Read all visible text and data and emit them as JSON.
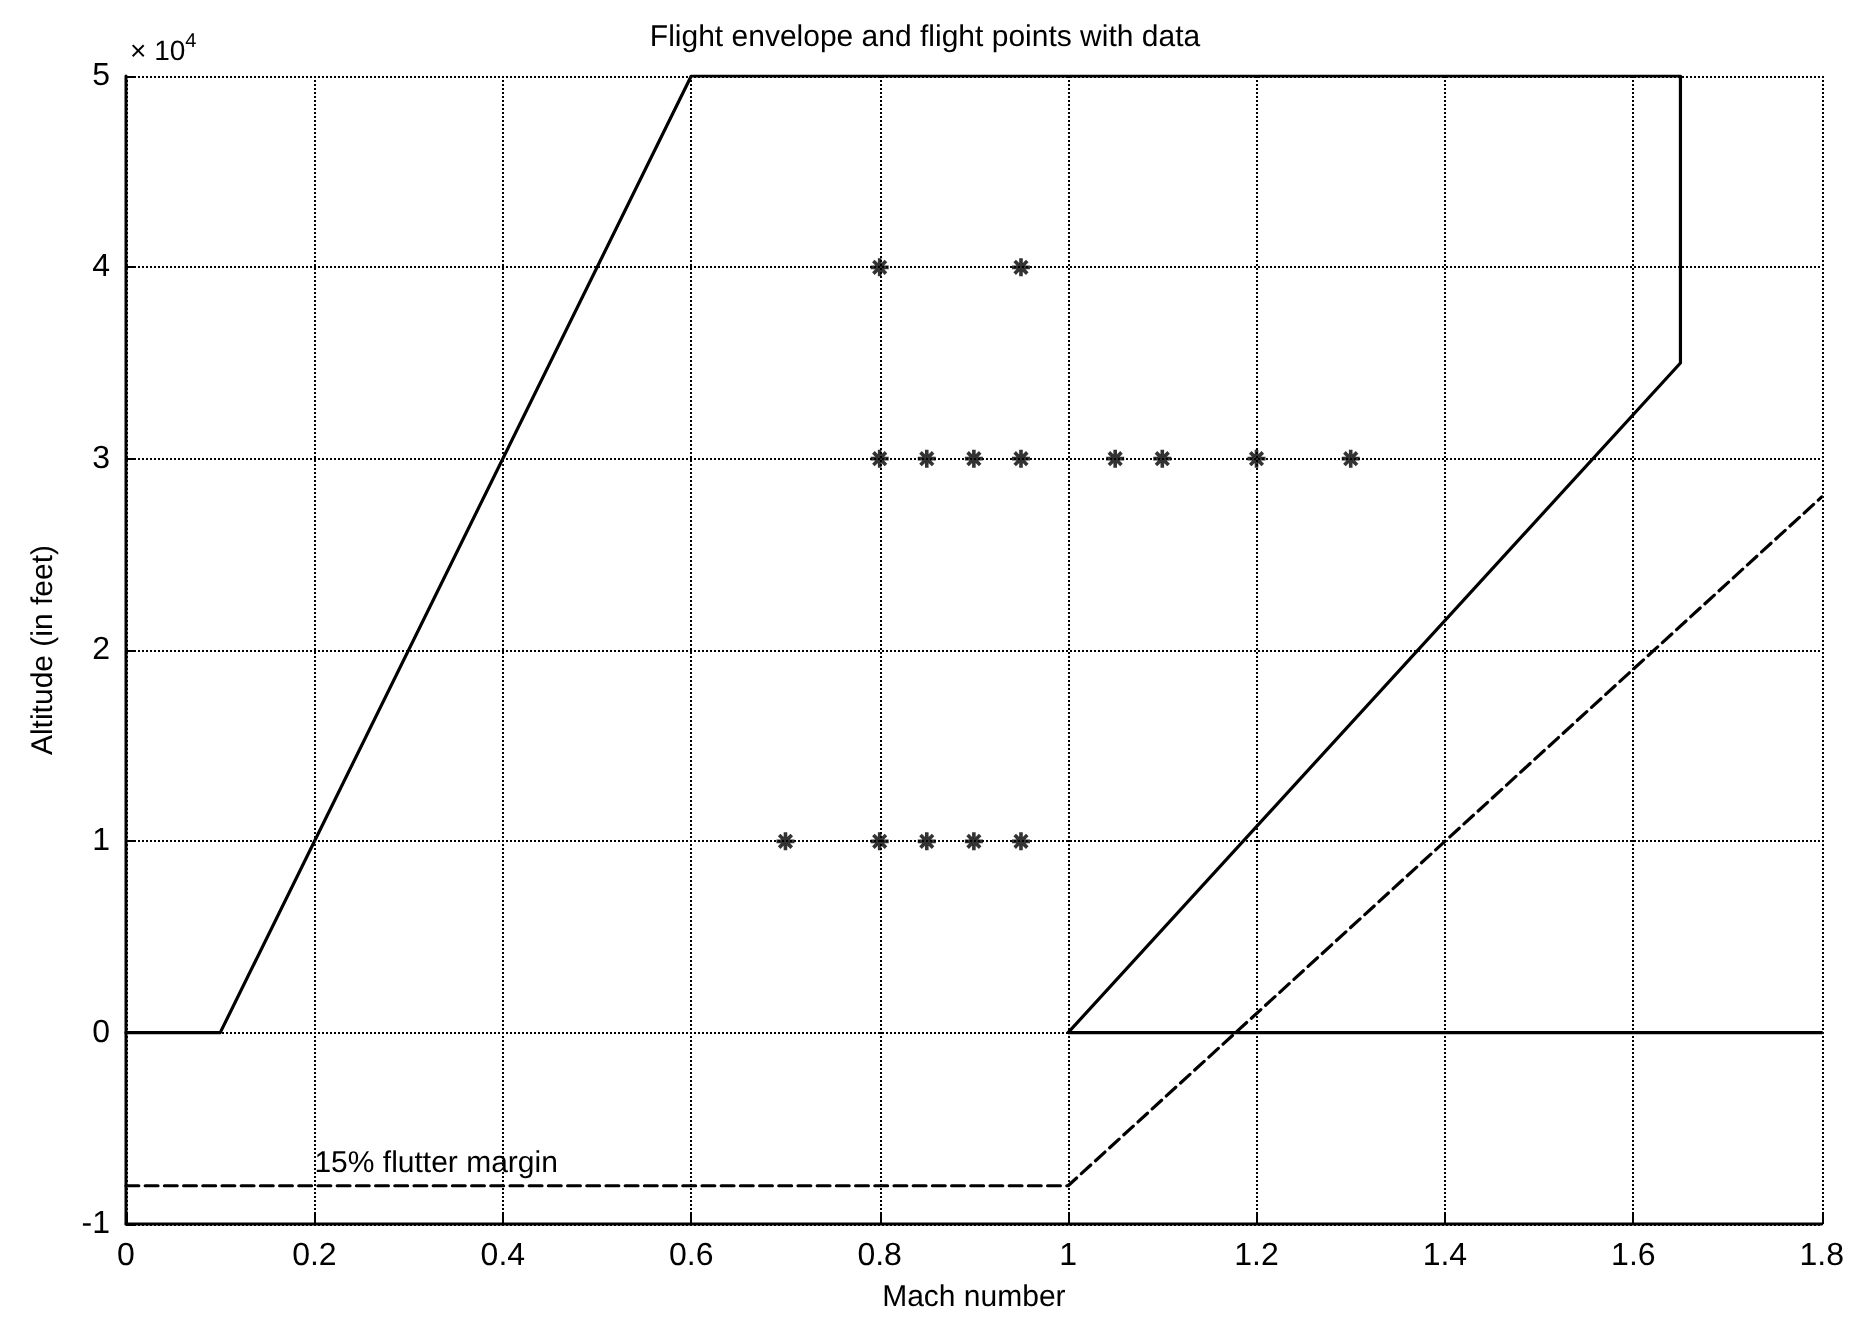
{
  "chart_data": {
    "type": "line",
    "title": "Flight envelope and flight points with data",
    "xlabel": "Mach number",
    "ylabel": "Altitude (in feet)",
    "xlim": [
      0,
      1.8
    ],
    "xticks": [
      0,
      0.2,
      0.4,
      0.6,
      0.8,
      1,
      1.2,
      1.4,
      1.6,
      1.8
    ],
    "ylim": [
      -1,
      5
    ],
    "yticks": [
      -1,
      0,
      1,
      2,
      3,
      4,
      5
    ],
    "grid": true,
    "annotations": [
      "× 10$^{4}$",
      {
        "text": "15% flutter margin",
        "x": 0.2,
        "y": -0.8
      }
    ],
    "series": [
      {
        "color": "#000000",
        "line_style": "solid",
        "marker": "none",
        "x": [
          0,
          0.1,
          0.6,
          1.65,
          1.65,
          1,
          1.8
        ],
        "values": [
          0,
          0,
          5,
          5,
          3.5,
          0,
          0
        ]
      },
      {
        "color": "#000000",
        "line_style": "dashed",
        "marker": "none",
        "x": [
          0,
          1,
          1.8
        ],
        "values": [
          -0.8,
          -0.8,
          2.8
        ]
      },
      {
        "type": "scatter",
        "color": "#000000",
        "marker": "cross",
        "x": [
          0.8,
          0.95,
          0.8,
          0.85,
          0.9,
          0.95,
          1.05,
          1.1,
          1.2,
          1.3,
          0.7,
          0.8,
          0.85,
          0.9,
          0.95
        ],
        "values": [
          4,
          4,
          3,
          3,
          3,
          3,
          3,
          3,
          3,
          3,
          1,
          1,
          1,
          1,
          1
        ]
      }
    ]
  }
}
